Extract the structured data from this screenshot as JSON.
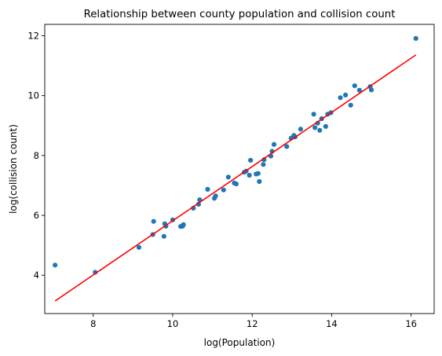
{
  "chart_data": {
    "type": "scatter",
    "title": "Relationship between county population and collision count",
    "xlabel": "log(Population)",
    "ylabel": "log(collision count)",
    "xlim": [
      6.78,
      16.58
    ],
    "ylim": [
      2.72,
      12.38
    ],
    "xticks": [
      8,
      10,
      12,
      14,
      16
    ],
    "yticks": [
      4,
      6,
      8,
      10,
      12
    ],
    "grid": false,
    "legend": "none",
    "colors": {
      "points": "#1f77b4",
      "fit_line": "#ff0000"
    },
    "series": [
      {
        "type": "scatter",
        "points": [
          [
            7.04,
            4.34
          ],
          [
            8.05,
            4.1
          ],
          [
            9.15,
            4.93
          ],
          [
            9.5,
            5.36
          ],
          [
            9.52,
            5.8
          ],
          [
            9.78,
            5.3
          ],
          [
            9.8,
            5.72
          ],
          [
            9.83,
            5.64
          ],
          [
            10.0,
            5.85
          ],
          [
            10.2,
            5.63
          ],
          [
            10.25,
            5.64
          ],
          [
            10.27,
            5.69
          ],
          [
            10.52,
            6.24
          ],
          [
            10.65,
            6.37
          ],
          [
            10.68,
            6.52
          ],
          [
            10.88,
            6.87
          ],
          [
            11.05,
            6.57
          ],
          [
            11.08,
            6.65
          ],
          [
            11.28,
            6.85
          ],
          [
            11.4,
            7.28
          ],
          [
            11.55,
            7.08
          ],
          [
            11.6,
            7.05
          ],
          [
            11.8,
            7.44
          ],
          [
            11.85,
            7.48
          ],
          [
            11.93,
            7.34
          ],
          [
            11.96,
            7.84
          ],
          [
            12.1,
            7.38
          ],
          [
            12.15,
            7.4
          ],
          [
            12.18,
            7.13
          ],
          [
            12.28,
            7.7
          ],
          [
            12.3,
            7.86
          ],
          [
            12.47,
            7.98
          ],
          [
            12.5,
            8.14
          ],
          [
            12.55,
            8.37
          ],
          [
            12.87,
            8.3
          ],
          [
            12.98,
            8.58
          ],
          [
            13.05,
            8.67
          ],
          [
            13.08,
            8.62
          ],
          [
            13.22,
            8.88
          ],
          [
            13.55,
            9.38
          ],
          [
            13.58,
            8.93
          ],
          [
            13.65,
            9.08
          ],
          [
            13.7,
            8.84
          ],
          [
            13.75,
            9.23
          ],
          [
            13.85,
            8.97
          ],
          [
            13.9,
            9.38
          ],
          [
            13.98,
            9.43
          ],
          [
            14.22,
            9.93
          ],
          [
            14.35,
            10.02
          ],
          [
            14.48,
            9.68
          ],
          [
            14.58,
            10.33
          ],
          [
            14.7,
            10.18
          ],
          [
            14.97,
            10.3
          ],
          [
            15.0,
            10.19
          ],
          [
            16.12,
            11.91
          ]
        ]
      },
      {
        "type": "line",
        "points": [
          [
            7.04,
            3.14
          ],
          [
            16.12,
            11.36
          ]
        ]
      }
    ]
  }
}
